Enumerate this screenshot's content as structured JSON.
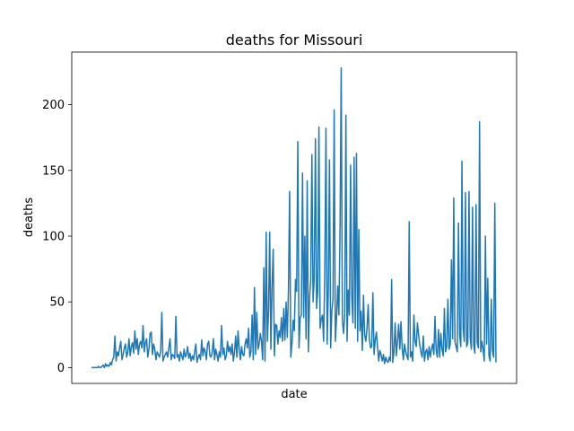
{
  "chart_data": {
    "type": "line",
    "title": "deaths for Missouri",
    "xlabel": "date",
    "ylabel": "deaths",
    "ylim": [
      -12,
      240
    ],
    "yticks": [
      0,
      50,
      100,
      150,
      200
    ],
    "xticks_shown": false,
    "grid": false,
    "line_color": "#1f77b4",
    "series": [
      {
        "name": "deaths",
        "values": [
          0,
          0,
          0,
          0,
          0,
          0,
          1,
          0,
          0,
          1,
          2,
          0,
          3,
          1,
          2,
          1,
          4,
          2,
          6,
          8,
          24,
          5,
          12,
          9,
          15,
          20,
          6,
          10,
          15,
          18,
          8,
          12,
          22,
          9,
          16,
          19,
          11,
          28,
          14,
          22,
          10,
          18,
          20,
          15,
          32,
          12,
          19,
          22,
          8,
          14,
          26,
          27,
          10,
          18,
          14,
          6,
          12,
          10,
          8,
          12,
          42,
          5,
          8,
          10,
          12,
          8,
          15,
          22,
          6,
          10,
          9,
          7,
          39,
          8,
          10,
          5,
          12,
          9,
          6,
          14,
          8,
          10,
          16,
          7,
          11,
          5,
          9,
          6,
          12,
          18,
          4,
          8,
          10,
          6,
          21,
          9,
          15,
          12,
          6,
          18,
          20,
          9,
          8,
          12,
          22,
          6,
          14,
          10,
          5,
          12,
          8,
          32,
          10,
          15,
          6,
          9,
          20,
          12,
          16,
          10,
          18,
          5,
          12,
          24,
          8,
          28,
          14,
          6,
          16,
          10,
          9,
          18,
          22,
          15,
          30,
          8,
          12,
          40,
          6,
          61,
          10,
          42,
          14,
          18,
          26,
          20,
          6,
          76,
          5,
          103,
          20,
          42,
          103,
          14,
          62,
          90,
          9,
          33,
          32,
          18,
          28,
          23,
          38,
          20,
          45,
          21,
          50,
          23,
          59,
          134,
          8,
          18,
          36,
          28,
          67,
          58,
          172,
          15,
          38,
          40,
          148,
          38,
          100,
          22,
          142,
          12,
          53,
          67,
          162,
          50,
          69,
          174,
          45,
          58,
          183,
          30,
          37,
          40,
          20,
          72,
          182,
          18,
          59,
          158,
          15,
          43,
          52,
          196,
          20,
          37,
          62,
          40,
          105,
          228,
          36,
          26,
          41,
          192,
          20,
          59,
          40,
          154,
          55,
          34,
          160,
          30,
          163,
          20,
          105,
          28,
          43,
          13,
          55,
          25,
          20,
          30,
          48,
          22,
          15,
          16,
          57,
          10,
          21,
          27,
          16,
          5,
          13,
          10,
          5,
          10,
          3,
          8,
          5,
          4,
          8,
          5,
          67,
          4,
          12,
          34,
          9,
          20,
          33,
          14,
          35,
          15,
          6,
          18,
          12,
          9,
          6,
          111,
          8,
          12,
          5,
          40,
          20,
          16,
          34,
          25,
          17,
          12,
          8,
          24,
          5,
          12,
          14,
          6,
          16,
          8,
          14,
          18,
          10,
          39,
          13,
          8,
          29,
          8,
          26,
          14,
          9,
          45,
          12,
          16,
          52,
          14,
          18,
          82,
          22,
          129,
          20,
          16,
          12,
          110,
          25,
          16,
          157,
          30,
          20,
          133,
          16,
          19,
          134,
          23,
          14,
          122,
          17,
          11,
          124,
          19,
          15,
          187,
          12,
          20,
          14,
          5,
          100,
          18,
          68,
          9,
          5,
          52,
          13,
          8,
          125,
          4
        ]
      }
    ]
  }
}
